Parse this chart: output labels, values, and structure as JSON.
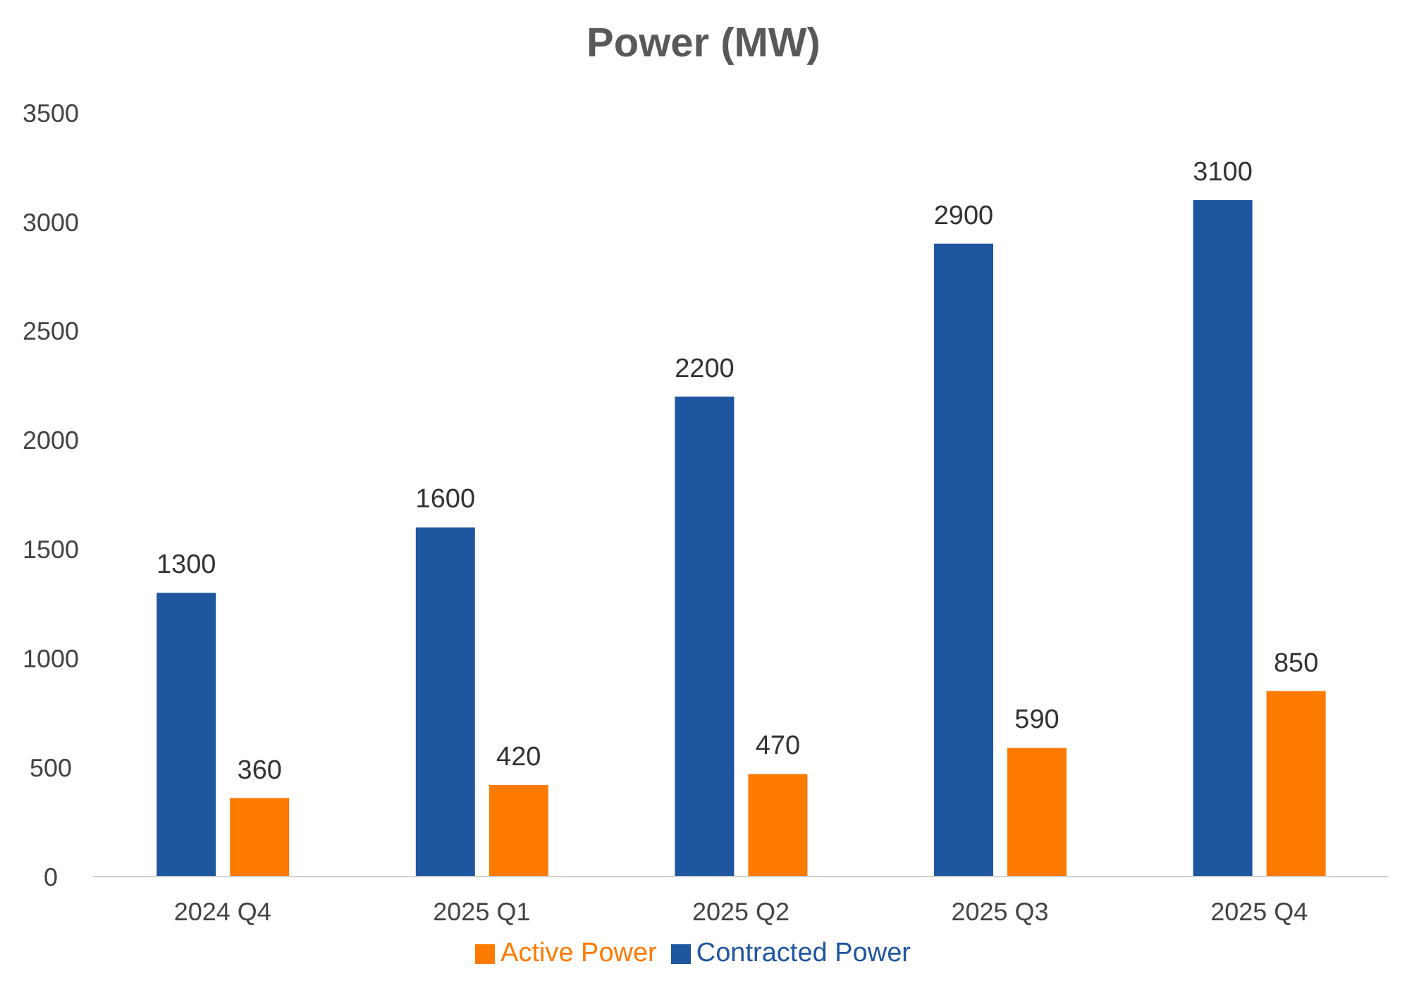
{
  "chart_data": {
    "type": "bar",
    "title": "Power (MW)",
    "categories": [
      "2024 Q4",
      "2025 Q1",
      "2025 Q2",
      "2025 Q3",
      "2025 Q4"
    ],
    "series": [
      {
        "name": "Contracted Power",
        "color": "#1f56a0",
        "values": [
          1300,
          1600,
          2200,
          2900,
          3100
        ]
      },
      {
        "name": "Active Power",
        "color": "#ff7a00",
        "values": [
          360,
          420,
          470,
          590,
          850
        ]
      }
    ],
    "ylim": [
      0,
      3500
    ],
    "yticks": [
      0,
      500,
      1000,
      1500,
      2000,
      2500,
      3000,
      3500
    ],
    "grid": false,
    "legend": "bottom",
    "data_labels": true
  }
}
